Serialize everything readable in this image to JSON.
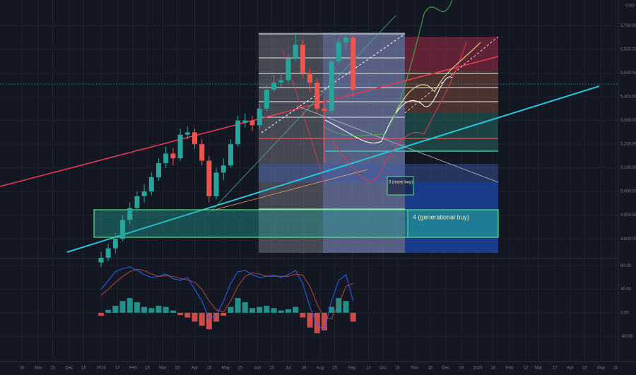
{
  "chart_data": [
    {
      "type": "candlestick",
      "currency": "USD",
      "x": [
        "2024-01-01",
        "2024-01-08",
        "2024-01-15",
        "2024-01-22",
        "2024-01-29",
        "2024-02-05",
        "2024-02-12",
        "2024-02-19",
        "2024-02-26",
        "2024-03-04",
        "2024-03-11",
        "2024-03-18",
        "2024-03-25",
        "2024-04-01",
        "2024-04-08",
        "2024-04-15",
        "2024-04-22",
        "2024-04-29",
        "2024-05-06",
        "2024-05-13",
        "2024-05-20",
        "2024-05-27",
        "2024-06-03",
        "2024-06-10",
        "2024-06-17",
        "2024-06-24",
        "2024-07-01",
        "2024-07-08",
        "2024-07-15",
        "2024-07-22",
        "2024-07-29",
        "2024-08-05",
        "2024-08-12",
        "2024-08-19",
        "2024-08-26",
        "2024-09-02"
      ],
      "open": [
        4700,
        4720,
        4760,
        4800,
        4880,
        4930,
        4980,
        5000,
        5060,
        5120,
        5160,
        5140,
        5240,
        5250,
        5200,
        5130,
        4980,
        5080,
        5110,
        5200,
        5290,
        5300,
        5280,
        5350,
        5430,
        5460,
        5470,
        5560,
        5620,
        5500,
        5460,
        5350,
        5340,
        5550,
        5630,
        5650
      ],
      "high": [
        4745,
        4780,
        4825,
        4900,
        4955,
        5000,
        5030,
        5080,
        5140,
        5190,
        5185,
        5265,
        5275,
        5265,
        5220,
        5150,
        5100,
        5140,
        5220,
        5320,
        5330,
        5320,
        5370,
        5450,
        5490,
        5500,
        5580,
        5670,
        5640,
        5520,
        5480,
        5390,
        5565,
        5650,
        5670,
        5660
      ],
      "low": [
        4680,
        4705,
        4740,
        4790,
        4860,
        4915,
        4955,
        4985,
        5045,
        5100,
        5110,
        5130,
        5220,
        5180,
        5110,
        4955,
        4965,
        5050,
        5100,
        5190,
        5270,
        5255,
        5265,
        5340,
        5420,
        5440,
        5460,
        5550,
        5480,
        5420,
        5330,
        5120,
        5330,
        5540,
        5600,
        5400
      ],
      "close": [
        4720,
        4760,
        4800,
        4880,
        4930,
        4980,
        5000,
        5060,
        5120,
        5160,
        5140,
        5240,
        5250,
        5200,
        5130,
        4980,
        5080,
        5110,
        5200,
        5300,
        5300,
        5280,
        5350,
        5430,
        5460,
        5470,
        5560,
        5620,
        5500,
        5460,
        5350,
        5340,
        5550,
        5630,
        5650,
        5430
      ],
      "up_color": "#26a69a",
      "down_color": "#ef5350",
      "ylim": [
        4720,
        5800
      ],
      "yticks": [
        {
          "value": 4800,
          "label": "4,800.00"
        },
        {
          "value": 4900,
          "label": "4,900.00"
        },
        {
          "value": 5000,
          "label": "5,000.00"
        },
        {
          "value": 5100,
          "label": "5,100.00"
        },
        {
          "value": 5200,
          "label": "5,200.00"
        },
        {
          "value": 5300,
          "label": "5,300.00"
        },
        {
          "value": 5400,
          "label": "5,400.00"
        },
        {
          "value": 5500,
          "label": "5,500.00"
        },
        {
          "value": 5600,
          "label": "5,600.00"
        },
        {
          "value": 5700,
          "label": "5,700.00"
        }
      ],
      "xticks": [
        {
          "value": "2023-10-16",
          "label": "16"
        },
        {
          "value": "2023-11-01",
          "label": "Nov"
        },
        {
          "value": "2023-11-15",
          "label": "15"
        },
        {
          "value": "2023-12-01",
          "label": "Dec"
        },
        {
          "value": "2023-12-15",
          "label": "15"
        },
        {
          "value": "2024-01-01",
          "label": "2024"
        },
        {
          "value": "2024-01-17",
          "label": "17"
        },
        {
          "value": "2024-02-01",
          "label": "Feb"
        },
        {
          "value": "2024-02-15",
          "label": "15"
        },
        {
          "value": "2024-03-01",
          "label": "Mar"
        },
        {
          "value": "2024-03-15",
          "label": "15"
        },
        {
          "value": "2024-04-01",
          "label": "Apr"
        },
        {
          "value": "2024-04-15",
          "label": "15"
        },
        {
          "value": "2024-05-01",
          "label": "May"
        },
        {
          "value": "2024-05-15",
          "label": "15"
        },
        {
          "value": "2024-06-01",
          "label": "Jun"
        },
        {
          "value": "2024-06-15",
          "label": "15"
        },
        {
          "value": "2024-07-01",
          "label": "Jul"
        },
        {
          "value": "2024-07-16",
          "label": "16"
        },
        {
          "value": "2024-08-01",
          "label": "Aug"
        },
        {
          "value": "2024-08-15",
          "label": "15"
        },
        {
          "value": "2024-09-01",
          "label": "Sep"
        },
        {
          "value": "2024-09-17",
          "label": "17"
        },
        {
          "value": "2024-10-01",
          "label": "Oct"
        },
        {
          "value": "2024-10-15",
          "label": "15"
        },
        {
          "value": "2024-11-01",
          "label": "Nov"
        },
        {
          "value": "2024-11-16",
          "label": "16"
        },
        {
          "value": "2024-12-01",
          "label": "Dec"
        },
        {
          "value": "2024-12-16",
          "label": "16"
        },
        {
          "value": "2025-01-01",
          "label": "2025"
        },
        {
          "value": "2025-01-16",
          "label": "16"
        },
        {
          "value": "2025-02-01",
          "label": "Feb"
        },
        {
          "value": "2025-02-17",
          "label": "17"
        },
        {
          "value": "2025-03-01",
          "label": "Mar"
        },
        {
          "value": "2025-03-17",
          "label": "17"
        },
        {
          "value": "2025-04-01",
          "label": "Apr"
        },
        {
          "value": "2025-04-15",
          "label": "15"
        },
        {
          "value": "2025-05-01",
          "label": "May"
        },
        {
          "value": "2025-05-15",
          "label": "15"
        }
      ],
      "grid": true,
      "annotations": [
        "4 (generational buy)",
        "3 (more buy)"
      ]
    },
    {
      "type": "histogram",
      "x": [
        "2024-01-01",
        "2024-01-08",
        "2024-01-15",
        "2024-01-22",
        "2024-01-29",
        "2024-02-05",
        "2024-02-12",
        "2024-02-19",
        "2024-02-26",
        "2024-03-04",
        "2024-03-11",
        "2024-03-18",
        "2024-03-25",
        "2024-04-01",
        "2024-04-08",
        "2024-04-15",
        "2024-04-22",
        "2024-04-29",
        "2024-05-06",
        "2024-05-13",
        "2024-05-20",
        "2024-05-27",
        "2024-06-03",
        "2024-06-10",
        "2024-06-17",
        "2024-06-24",
        "2024-07-01",
        "2024-07-08",
        "2024-07-15",
        "2024-07-22",
        "2024-07-29",
        "2024-08-05",
        "2024-08-12",
        "2024-08-19",
        "2024-08-26",
        "2024-09-02"
      ],
      "values": [
        -5,
        5,
        12,
        20,
        25,
        18,
        10,
        8,
        12,
        10,
        4,
        -4,
        -8,
        -15,
        -22,
        -28,
        -15,
        -5,
        10,
        25,
        18,
        8,
        10,
        12,
        8,
        4,
        6,
        10,
        -8,
        -25,
        -35,
        -30,
        10,
        25,
        20,
        -15
      ],
      "pos_color": "#26a69a",
      "neg_color": "#ef5350",
      "series": [
        {
          "color": "#2962ff",
          "values": [
            40,
            55,
            70,
            75,
            78,
            72,
            65,
            60,
            62,
            66,
            58,
            55,
            60,
            40,
            20,
            -10,
            -5,
            20,
            50,
            70,
            72,
            65,
            60,
            62,
            64,
            60,
            65,
            72,
            50,
            10,
            -20,
            -30,
            20,
            55,
            65,
            20
          ]
        },
        {
          "color": "#b2473e",
          "values": [
            30,
            40,
            52,
            62,
            70,
            74,
            72,
            66,
            62,
            63,
            62,
            58,
            56,
            52,
            40,
            20,
            5,
            2,
            20,
            45,
            62,
            68,
            66,
            62,
            62,
            62,
            62,
            66,
            64,
            45,
            15,
            -10,
            -10,
            15,
            45,
            50
          ]
        }
      ],
      "ylim": [
        -83,
        90
      ],
      "yticks": [
        {
          "value": 80,
          "label": "80.00"
        },
        {
          "value": 40,
          "label": "40.00"
        },
        {
          "value": 0,
          "label": "0.00"
        },
        {
          "value": -40,
          "label": "-40.00"
        }
      ]
    }
  ]
}
